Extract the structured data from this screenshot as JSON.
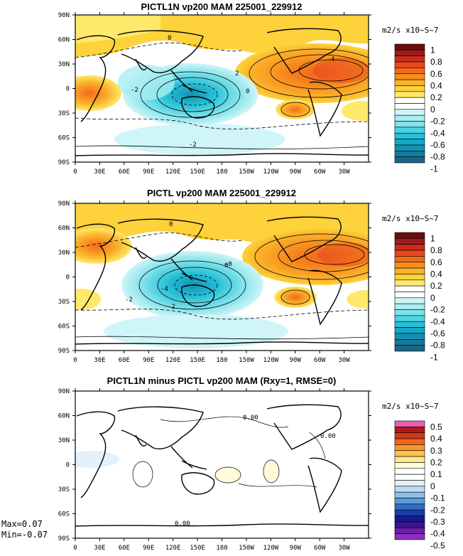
{
  "chart_data": [
    {
      "type": "heatmap",
      "title": "PICTL1N vp200 MAM 225001_229912",
      "variable": "vp200",
      "units": "m2/s x10~S~7",
      "lon_ticks": [
        "0",
        "30E",
        "60E",
        "90E",
        "120E",
        "150E",
        "180",
        "150W",
        "120W",
        "90W",
        "60W",
        "30W"
      ],
      "lat_ticks": [
        "90N",
        "60N",
        "30N",
        "0",
        "30S",
        "60S",
        "90S"
      ],
      "colorbar_labels": [
        "1",
        "0.8",
        "0.6",
        "0.4",
        "0.2",
        "0",
        "-0.2",
        "-0.4",
        "-0.6",
        "-0.8",
        "-1"
      ],
      "colorbar_colors": [
        "#6e0b0b",
        "#9e1b1b",
        "#cc2a1c",
        "#e8481e",
        "#f46a1c",
        "#f88e1e",
        "#fab22a",
        "#fdd23a",
        "#ffe96a",
        "#ffffff",
        "#ffffff",
        "#cff5f8",
        "#a8edf2",
        "#7fe2ea",
        "#4ed4e2",
        "#25bfd6",
        "#13a8c7",
        "#1391b3",
        "#167a9c",
        "#1a6584"
      ],
      "contour_labels": [
        "2",
        "4",
        "-2",
        "-4",
        "0"
      ]
    },
    {
      "type": "heatmap",
      "title": "PICTL vp200 MAM 225001_229912",
      "variable": "vp200",
      "units": "m2/s x10~S~7",
      "lon_ticks": [
        "0",
        "30E",
        "60E",
        "90E",
        "120E",
        "150E",
        "180",
        "150W",
        "120W",
        "90W",
        "60W",
        "30W"
      ],
      "lat_ticks": [
        "90N",
        "60N",
        "30N",
        "0",
        "30S",
        "60S",
        "90S"
      ],
      "colorbar_labels": [
        "1",
        "0.8",
        "0.6",
        "0.4",
        "0.2",
        "0",
        "-0.2",
        "-0.4",
        "-0.6",
        "-0.8",
        "-1"
      ],
      "colorbar_colors": [
        "#6e0b0b",
        "#9e1b1b",
        "#cc2a1c",
        "#e8481e",
        "#f46a1c",
        "#f88e1e",
        "#fab22a",
        "#fdd23a",
        "#ffe96a",
        "#ffffff",
        "#ffffff",
        "#cff5f8",
        "#a8edf2",
        "#7fe2ea",
        "#4ed4e2",
        "#25bfd6",
        "#13a8c7",
        "#1391b3",
        "#167a9c",
        "#1a6584"
      ],
      "contour_labels": [
        "0",
        "-2",
        "-4",
        "-0"
      ]
    },
    {
      "type": "heatmap",
      "title": "PICTL1N minus PICTL vp200 MAM (Rxy=1, RMSE=0)",
      "variable": "vp200 difference",
      "units": "m2/s x10~S~7",
      "lon_ticks": [
        "0",
        "30E",
        "60E",
        "90E",
        "120E",
        "150E",
        "180",
        "150W",
        "120W",
        "90W",
        "60W",
        "30W"
      ],
      "lat_ticks": [
        "90N",
        "60N",
        "30N",
        "0",
        "30S",
        "60S",
        "90S"
      ],
      "colorbar_labels": [
        "0.5",
        "0.4",
        "0.3",
        "0.2",
        "0.1",
        "0",
        "-0.1",
        "-0.2",
        "-0.3",
        "-0.4",
        "-0.5"
      ],
      "colorbar_colors": [
        "#e85fb2",
        "#b01a1a",
        "#d43818",
        "#ef6520",
        "#f7962c",
        "#fbc44e",
        "#fde98c",
        "#fffbd8",
        "#ffffff",
        "#ffffff",
        "#e4f1fb",
        "#bcdcf3",
        "#8fbfe8",
        "#5c9ad8",
        "#2f6dc4",
        "#1a3ea6",
        "#151a8c",
        "#3a148c",
        "#6a1ea8",
        "#8e2cc4"
      ],
      "contour_labels": [
        "0.00",
        "0.00",
        "0.00"
      ],
      "max_label": "Max=0.07",
      "min_label": "Min=-0.07"
    }
  ]
}
